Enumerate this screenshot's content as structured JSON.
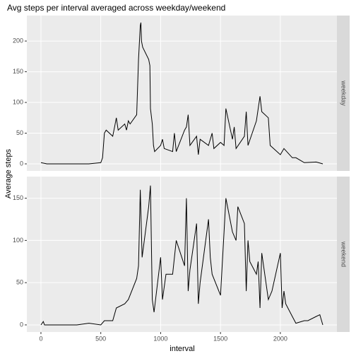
{
  "chart_data": {
    "type": "line",
    "title": "Avg steps per interval averaged across weekday/weekend",
    "xlabel": "interval",
    "ylabel": "Average steps",
    "color": "#000000",
    "grid": true,
    "xlim": [
      -117.75,
      2472.75
    ],
    "xticks": [
      0,
      500,
      1000,
      1500,
      2000
    ],
    "facets": [
      {
        "name": "weekday",
        "ylim": [
          -11.5,
          241.5
        ],
        "yticks": [
          0,
          50,
          100,
          150,
          200
        ],
        "x": [
          0,
          50,
          100,
          200,
          300,
          400,
          500,
          515,
          530,
          545,
          600,
          615,
          630,
          645,
          700,
          715,
          730,
          745,
          800,
          815,
          830,
          835,
          840,
          850,
          900,
          910,
          915,
          930,
          940,
          950,
          1000,
          1015,
          1030,
          1100,
          1115,
          1130,
          1200,
          1215,
          1230,
          1245,
          1300,
          1315,
          1330,
          1400,
          1430,
          1445,
          1500,
          1530,
          1545,
          1600,
          1615,
          1630,
          1700,
          1715,
          1730,
          1800,
          1830,
          1845,
          1900,
          1915,
          2000,
          2030,
          2100,
          2130,
          2200,
          2300,
          2355
        ],
        "values": [
          2,
          0,
          0,
          0,
          0,
          0,
          2,
          10,
          50,
          55,
          45,
          60,
          75,
          55,
          65,
          55,
          70,
          65,
          80,
          170,
          225,
          230,
          200,
          190,
          170,
          160,
          90,
          65,
          30,
          20,
          30,
          40,
          25,
          20,
          50,
          20,
          55,
          60,
          80,
          30,
          45,
          15,
          40,
          30,
          50,
          25,
          35,
          30,
          90,
          40,
          60,
          25,
          45,
          85,
          30,
          70,
          110,
          85,
          75,
          30,
          15,
          25,
          10,
          10,
          2,
          3,
          0
        ]
      },
      {
        "name": "weekend",
        "ylim": [
          -8.4,
          175.6
        ],
        "yticks": [
          0,
          50,
          100,
          150
        ],
        "x": [
          0,
          20,
          30,
          100,
          300,
          400,
          500,
          530,
          600,
          630,
          700,
          730,
          800,
          815,
          830,
          845,
          900,
          915,
          930,
          945,
          1000,
          1015,
          1045,
          1100,
          1130,
          1200,
          1215,
          1230,
          1245,
          1300,
          1315,
          1330,
          1400,
          1415,
          1430,
          1500,
          1530,
          1545,
          1600,
          1630,
          1645,
          1700,
          1715,
          1730,
          1745,
          1800,
          1815,
          1830,
          1845,
          1900,
          1930,
          2000,
          2015,
          2030,
          2045,
          2100,
          2130,
          2200,
          2230,
          2300,
          2330,
          2355
        ],
        "values": [
          0,
          4,
          0,
          0,
          0,
          2,
          0,
          5,
          5,
          20,
          25,
          30,
          55,
          70,
          160,
          80,
          140,
          165,
          30,
          15,
          80,
          30,
          60,
          60,
          100,
          70,
          150,
          40,
          65,
          120,
          25,
          50,
          125,
          80,
          60,
          35,
          110,
          150,
          110,
          100,
          140,
          120,
          40,
          100,
          75,
          60,
          75,
          20,
          85,
          30,
          40,
          85,
          20,
          40,
          25,
          10,
          2,
          5,
          5,
          10,
          12,
          0
        ]
      }
    ]
  }
}
